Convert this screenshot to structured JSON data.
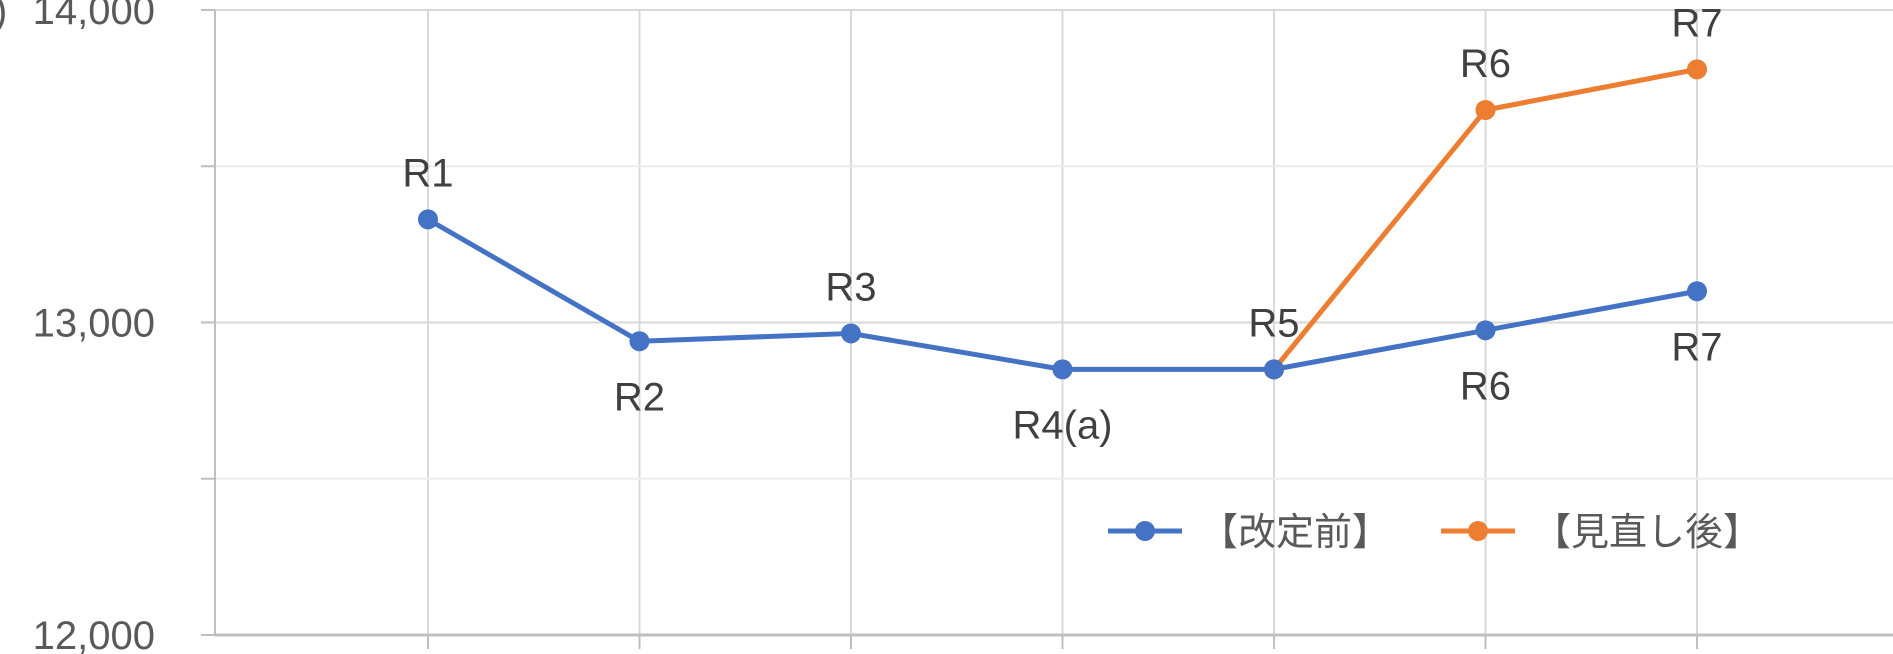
{
  "chart_data": {
    "type": "line",
    "categories": [
      "R1",
      "R2",
      "R3",
      "R4(a)",
      "R5",
      "R6",
      "R7"
    ],
    "ylim": [
      12000,
      14000
    ],
    "yticks": [
      12000,
      13000,
      14000
    ],
    "ytick_labels": [
      "12,000",
      "13,000",
      "14,000"
    ],
    "y_minor_ticks": [
      12500,
      13500
    ],
    "y_tick_prefix_clipped": ")",
    "grid": true,
    "legend_position": "bottom-right",
    "series": [
      {
        "name": "【改定前】",
        "color": "#4472C4",
        "values": [
          13330,
          12940,
          12965,
          12850,
          12850,
          12975,
          13100
        ],
        "labels": [
          "R1",
          "R2",
          "R3",
          "R4(a)",
          "R5",
          "R6",
          "R7"
        ],
        "label_positions": [
          "above",
          "below",
          "above",
          "below",
          "above",
          "below",
          "below"
        ]
      },
      {
        "name": "【見直し後】",
        "color": "#ED7D31",
        "values": [
          null,
          null,
          null,
          null,
          12850,
          13680,
          13810
        ],
        "labels": [
          null,
          null,
          null,
          null,
          null,
          "R6",
          "R7"
        ],
        "label_positions": [
          null,
          null,
          null,
          null,
          null,
          "above",
          "above"
        ]
      }
    ]
  }
}
